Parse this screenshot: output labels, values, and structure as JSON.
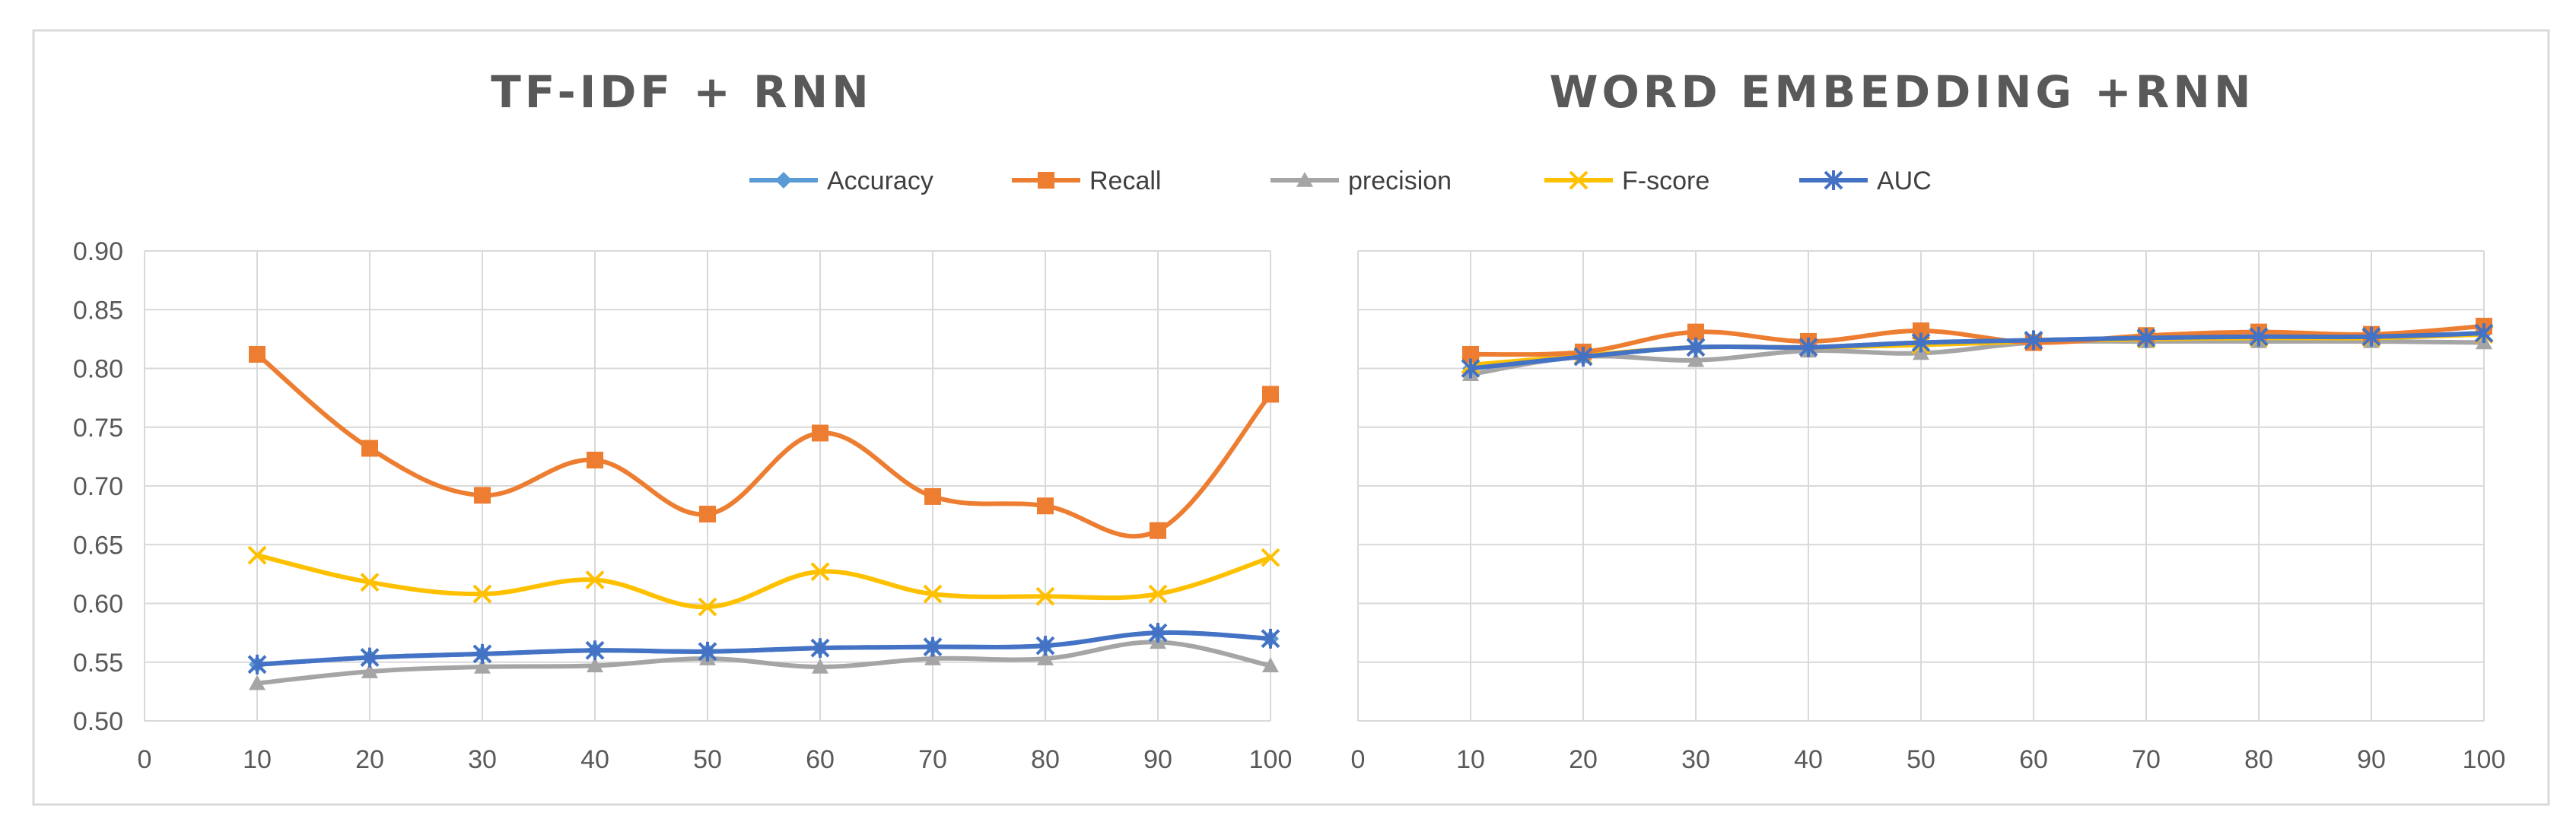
{
  "legend": [
    {
      "name": "Accuracy",
      "color": "#5B9BD5",
      "marker": "diamond"
    },
    {
      "name": "Recall",
      "color": "#ED7D31",
      "marker": "square"
    },
    {
      "name": "precision",
      "color": "#A5A5A5",
      "marker": "triangle"
    },
    {
      "name": "F-score",
      "color": "#FFC000",
      "marker": "x"
    },
    {
      "name": "AUC",
      "color": "#4472C4",
      "marker": "star"
    }
  ],
  "chart_data": [
    {
      "type": "line",
      "title": "TF-IDF + RNN",
      "x": [
        10,
        20,
        30,
        40,
        50,
        60,
        70,
        80,
        90,
        100
      ],
      "xlim": [
        0,
        100
      ],
      "xticks": [
        "0",
        "10",
        "20",
        "30",
        "40",
        "50",
        "60",
        "70",
        "80",
        "90",
        "100"
      ],
      "ylim": [
        0.5,
        0.9
      ],
      "yticks": [
        "0.90",
        "0.85",
        "0.80",
        "0.75",
        "0.70",
        "0.65",
        "0.60",
        "0.55",
        "0.50"
      ],
      "show_yticks": true,
      "grid": true,
      "series": [
        {
          "name": "Accuracy",
          "values": [
            0.548,
            0.554,
            0.557,
            0.56,
            0.559,
            0.562,
            0.563,
            0.564,
            0.575,
            0.57
          ]
        },
        {
          "name": "Recall",
          "values": [
            0.812,
            0.732,
            0.692,
            0.722,
            0.676,
            0.745,
            0.691,
            0.683,
            0.662,
            0.778
          ]
        },
        {
          "name": "precision",
          "values": [
            0.532,
            0.542,
            0.546,
            0.547,
            0.553,
            0.546,
            0.553,
            0.553,
            0.567,
            0.547
          ]
        },
        {
          "name": "F-score",
          "values": [
            0.641,
            0.618,
            0.608,
            0.62,
            0.597,
            0.627,
            0.608,
            0.606,
            0.608,
            0.639
          ]
        },
        {
          "name": "AUC",
          "values": [
            0.548,
            0.554,
            0.557,
            0.56,
            0.559,
            0.562,
            0.563,
            0.564,
            0.575,
            0.57
          ]
        }
      ]
    },
    {
      "type": "line",
      "title": "WORD EMBEDDING +RNN",
      "x": [
        10,
        20,
        30,
        40,
        50,
        60,
        70,
        80,
        90,
        100
      ],
      "xlim": [
        0,
        100
      ],
      "xticks": [
        "0",
        "10",
        "20",
        "30",
        "40",
        "50",
        "60",
        "70",
        "80",
        "90",
        "100"
      ],
      "ylim": [
        0.5,
        0.9
      ],
      "yticks": [],
      "show_yticks": false,
      "grid": true,
      "series": [
        {
          "name": "Accuracy",
          "values": [
            0.8,
            0.81,
            0.818,
            0.818,
            0.822,
            0.824,
            0.826,
            0.827,
            0.827,
            0.83
          ]
        },
        {
          "name": "Recall",
          "values": [
            0.812,
            0.814,
            0.831,
            0.823,
            0.832,
            0.822,
            0.828,
            0.831,
            0.829,
            0.836
          ]
        },
        {
          "name": "precision",
          "values": [
            0.795,
            0.81,
            0.807,
            0.815,
            0.813,
            0.822,
            0.823,
            0.823,
            0.823,
            0.822
          ]
        },
        {
          "name": "F-score",
          "values": [
            0.803,
            0.811,
            0.818,
            0.818,
            0.82,
            0.823,
            0.825,
            0.826,
            0.826,
            0.829
          ]
        },
        {
          "name": "AUC",
          "values": [
            0.8,
            0.81,
            0.818,
            0.818,
            0.822,
            0.824,
            0.826,
            0.827,
            0.827,
            0.83
          ]
        }
      ]
    }
  ]
}
